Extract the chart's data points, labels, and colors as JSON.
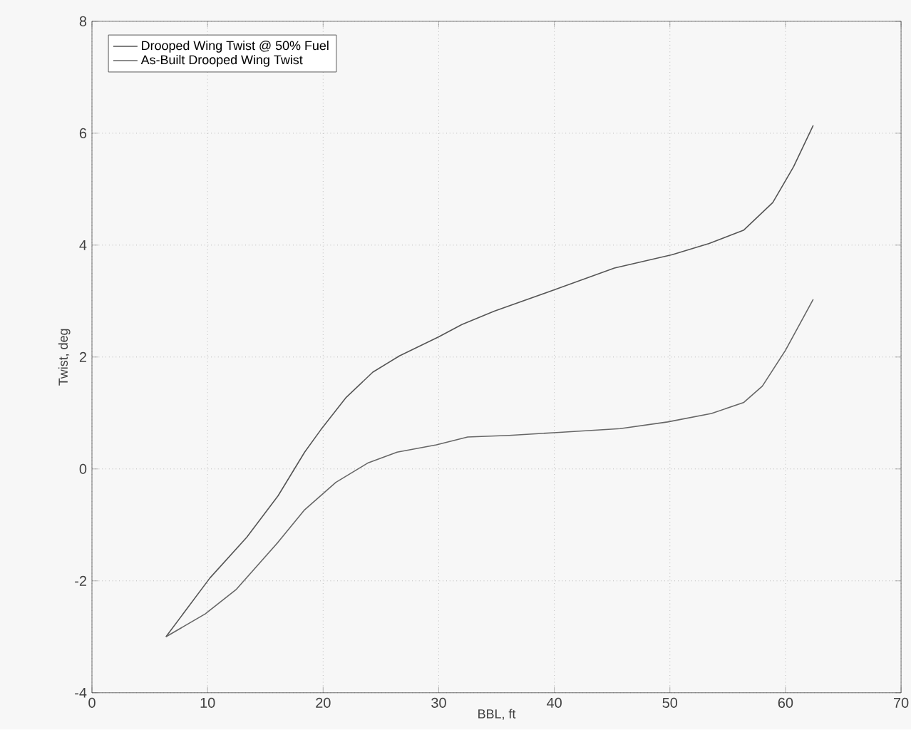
{
  "chart_data": {
    "type": "line",
    "xlabel": "BBL, ft",
    "ylabel": "Twist, deg",
    "xlim": [
      0,
      70
    ],
    "ylim": [
      -4,
      8
    ],
    "xticks": [
      0,
      10,
      20,
      30,
      40,
      50,
      60,
      70
    ],
    "yticks": [
      -4,
      -2,
      0,
      2,
      4,
      6,
      8
    ],
    "grid": true,
    "legend": "top left",
    "line_style": "solid",
    "marker": "none",
    "series": [
      {
        "name": "Drooped Wing Twist @ 50% Fuel",
        "color": "#555555",
        "x": [
          6.4,
          10.2,
          13.4,
          16.1,
          18.4,
          19.8,
          22.0,
          24.3,
          26.6,
          30.0,
          32.0,
          34.8,
          40.0,
          45.2,
          50.2,
          53.4,
          56.4,
          58.9,
          60.7,
          62.4
        ],
        "values": [
          -3.0,
          -1.95,
          -1.22,
          -0.48,
          0.3,
          0.7,
          1.28,
          1.73,
          2.02,
          2.36,
          2.58,
          2.82,
          3.2,
          3.59,
          3.83,
          4.03,
          4.27,
          4.76,
          5.4,
          6.14
        ]
      },
      {
        "name": "As-Built Drooped Wing Twist",
        "color": "#666666",
        "x": [
          6.4,
          9.8,
          12.5,
          16.1,
          18.4,
          21.1,
          23.9,
          26.4,
          29.8,
          32.5,
          36.1,
          40.2,
          45.7,
          49.8,
          53.6,
          56.4,
          58.0,
          60.0,
          62.4
        ],
        "values": [
          -3.0,
          -2.59,
          -2.15,
          -1.31,
          -0.73,
          -0.24,
          0.11,
          0.3,
          0.43,
          0.57,
          0.6,
          0.65,
          0.72,
          0.84,
          0.99,
          1.19,
          1.48,
          2.12,
          3.03
        ]
      }
    ]
  }
}
